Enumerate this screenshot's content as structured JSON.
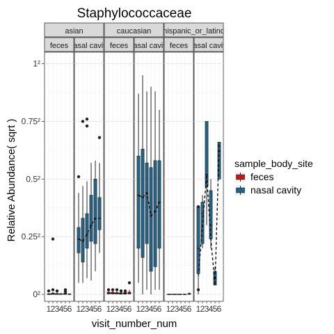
{
  "chart_data": {
    "type": "box",
    "title": "Staphylococcaceae",
    "xlabel": "visit_number_num",
    "ylabel": "Relative Abundance( sqrt )",
    "y_scale": "sqrt",
    "y_ticks": [
      {
        "value": 0,
        "label": "0²"
      },
      {
        "value": 0.25,
        "label": "0.25²"
      },
      {
        "value": 0.5,
        "label": "0.5²"
      },
      {
        "value": 0.75,
        "label": "0.75²"
      },
      {
        "value": 1,
        "label": "1²"
      }
    ],
    "ylim": [
      -0.03,
      1.05
    ],
    "x_ticks": [
      "1",
      "2",
      "3",
      "4",
      "5",
      "6"
    ],
    "legend": {
      "title": "sample_body_site",
      "position": "right",
      "entries": [
        {
          "name": "feces",
          "color": "#c0181d"
        },
        {
          "name": "nasal cavity",
          "color": "#236388"
        }
      ]
    },
    "panels": [
      {
        "ethnicity": "asian",
        "site": "feces",
        "boxes": [
          {
            "x": 1,
            "q1": 0,
            "med": 0,
            "q3": 0.003,
            "lo": 0,
            "hi": 0.005
          },
          {
            "x": 2,
            "q1": 0,
            "med": 0.002,
            "q3": 0.006,
            "lo": 0,
            "hi": 0.01
          },
          {
            "x": 3,
            "q1": 0,
            "med": 0.001,
            "q3": 0.004,
            "lo": 0,
            "hi": 0.008
          },
          {
            "x": 4,
            "q1": 0,
            "med": 0.001,
            "q3": 0.003,
            "lo": 0,
            "hi": 0.006
          },
          {
            "x": 5,
            "q1": 0,
            "med": 0.002,
            "q3": 0.005,
            "lo": 0,
            "hi": 0.01
          },
          {
            "x": 6,
            "q1": 0,
            "med": 0,
            "q3": 0.002,
            "lo": 0,
            "hi": 0.004
          }
        ],
        "outliers": [
          [
            1,
            0.015
          ],
          [
            2,
            0.02
          ],
          [
            2,
            0.24
          ],
          [
            3,
            0.015
          ],
          [
            5,
            0.02
          ],
          [
            5,
            0.012
          ]
        ]
      },
      {
        "ethnicity": "asian",
        "site": "nasal cavity",
        "boxes": [
          {
            "x": 1,
            "q1": 0.18,
            "med": 0.24,
            "q3": 0.29,
            "lo": 0.05,
            "hi": 0.44
          },
          {
            "x": 2,
            "q1": 0.14,
            "med": 0.23,
            "q3": 0.33,
            "lo": 0.05,
            "hi": 0.47
          },
          {
            "x": 3,
            "q1": 0.2,
            "med": 0.26,
            "q3": 0.35,
            "lo": 0.07,
            "hi": 0.49
          },
          {
            "x": 4,
            "q1": 0.23,
            "med": 0.3,
            "q3": 0.43,
            "lo": 0.06,
            "hi": 0.57
          },
          {
            "x": 5,
            "q1": 0.22,
            "med": 0.33,
            "q3": 0.5,
            "lo": 0.1,
            "hi": 0.58
          },
          {
            "x": 6,
            "q1": 0.28,
            "med": 0.33,
            "q3": 0.42,
            "lo": 0.18,
            "hi": 0.57
          }
        ],
        "outliers": [
          [
            1,
            0.51
          ],
          [
            2,
            0.75
          ],
          [
            3,
            0.76
          ],
          [
            3,
            0.73
          ],
          [
            6,
            0.68
          ]
        ]
      },
      {
        "ethnicity": "caucasian",
        "site": "feces",
        "boxes": [
          {
            "x": 1,
            "q1": 0.002,
            "med": 0.005,
            "q3": 0.01,
            "lo": 0,
            "hi": 0.02
          },
          {
            "x": 2,
            "q1": 0.002,
            "med": 0.005,
            "q3": 0.01,
            "lo": 0,
            "hi": 0.02
          },
          {
            "x": 3,
            "q1": 0.002,
            "med": 0.004,
            "q3": 0.008,
            "lo": 0,
            "hi": 0.015
          },
          {
            "x": 4,
            "q1": 0.001,
            "med": 0.003,
            "q3": 0.007,
            "lo": 0,
            "hi": 0.012
          },
          {
            "x": 5,
            "q1": 0.001,
            "med": 0.004,
            "q3": 0.008,
            "lo": 0,
            "hi": 0.015
          },
          {
            "x": 6,
            "q1": 0.002,
            "med": 0.005,
            "q3": 0.01,
            "lo": 0,
            "hi": 0.02
          }
        ],
        "outliers": [
          [
            1,
            0.02
          ],
          [
            2,
            0.02
          ],
          [
            3,
            0.02
          ],
          [
            4,
            0.015
          ],
          [
            5,
            0.015
          ],
          [
            6,
            0.05
          ]
        ]
      },
      {
        "ethnicity": "caucasian",
        "site": "nasal cavity",
        "boxes": [
          {
            "x": 1,
            "q1": 0.2,
            "med": 0.43,
            "q3": 0.6,
            "lo": 0.05,
            "hi": 0.87
          },
          {
            "x": 2,
            "q1": 0.16,
            "med": 0.42,
            "q3": 0.63,
            "lo": 0,
            "hi": 0.95
          },
          {
            "x": 3,
            "q1": 0.22,
            "med": 0.44,
            "q3": 0.57,
            "lo": 0.02,
            "hi": 0.88
          },
          {
            "x": 4,
            "q1": 0.1,
            "med": 0.34,
            "q3": 0.55,
            "lo": 0,
            "hi": 0.9
          },
          {
            "x": 5,
            "q1": 0.12,
            "med": 0.36,
            "q3": 0.58,
            "lo": 0.02,
            "hi": 0.88
          },
          {
            "x": 6,
            "q1": 0.2,
            "med": 0.4,
            "q3": 0.58,
            "lo": 0.02,
            "hi": 0.8
          }
        ],
        "outliers": []
      },
      {
        "ethnicity": "hispanic_or_latino",
        "site": "feces",
        "boxes": [
          {
            "x": 1,
            "q1": 0,
            "med": 0,
            "q3": 0.001,
            "lo": 0,
            "hi": 0.002
          },
          {
            "x": 2,
            "q1": 0,
            "med": 0,
            "q3": 0.001,
            "lo": 0,
            "hi": 0.002
          },
          {
            "x": 3,
            "q1": 0,
            "med": 0,
            "q3": 0.001,
            "lo": 0,
            "hi": 0.002
          },
          {
            "x": 4,
            "q1": 0,
            "med": 0,
            "q3": 0.001,
            "lo": 0,
            "hi": 0.002
          },
          {
            "x": 5,
            "q1": 0,
            "med": 0,
            "q3": 0.001,
            "lo": 0,
            "hi": 0.002
          },
          {
            "x": 6,
            "q1": 0,
            "med": 0.002,
            "q3": 0.004,
            "lo": 0,
            "hi": 0.008
          }
        ],
        "outliers": []
      },
      {
        "ethnicity": "hispanic_or_latino",
        "site": "nasal cavity",
        "boxes": [
          {
            "x": 1,
            "q1": 0.09,
            "med": 0.2,
            "q3": 0.38,
            "lo": 0,
            "hi": 0.38
          },
          {
            "x": 2,
            "q1": 0.22,
            "med": 0.35,
            "q3": 0.4,
            "lo": 0.2,
            "hi": 0.43
          },
          {
            "x": 3,
            "q1": 0.47,
            "med": 0.52,
            "q3": 0.75,
            "lo": 0.3,
            "hi": 0.75
          },
          {
            "x": 4,
            "q1": 0.24,
            "med": 0.3,
            "q3": 0.45,
            "lo": 0.2,
            "hi": 0.5
          },
          {
            "x": 5,
            "q1": 0.04,
            "med": 0.07,
            "q3": 0.1,
            "lo": 0.04,
            "hi": 0.12
          },
          {
            "x": 6,
            "q1": 0.5,
            "med": 0.62,
            "q3": 0.66,
            "lo": 0.5,
            "hi": 0.66
          }
        ],
        "outliers": [
          [
            1,
            0.38
          ],
          [
            1,
            0.02
          ]
        ],
        "trend": [
          [
            1,
            0.08
          ],
          [
            2,
            0.3
          ],
          [
            3,
            0.52
          ],
          [
            4,
            0.24
          ],
          [
            5,
            0.04
          ],
          [
            6,
            0.66
          ]
        ]
      }
    ],
    "ethnicities": [
      "asian",
      "caucasian",
      "hispanic_or_latino"
    ],
    "sites": [
      "feces",
      "nasal cavity"
    ]
  }
}
